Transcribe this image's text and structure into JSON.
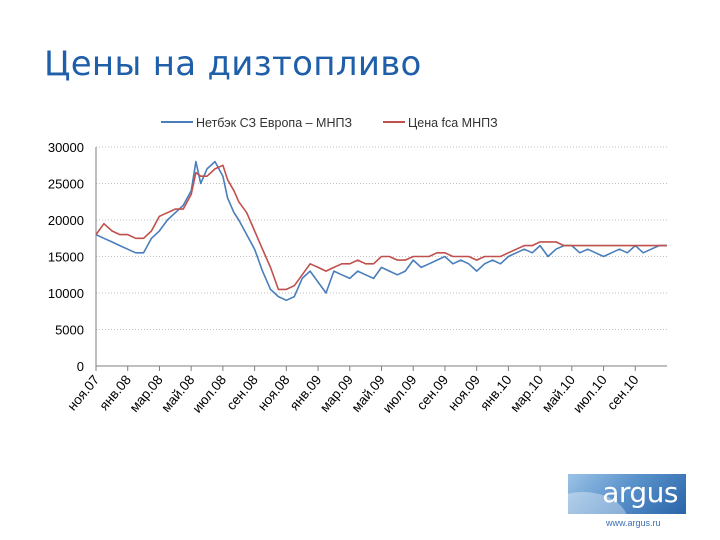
{
  "slide": {
    "title": "Цены на дизтопливо"
  },
  "logo": {
    "text": "argus",
    "url": "www.argus.ru"
  },
  "chart_data": {
    "type": "line",
    "title": "",
    "xlabel": "",
    "ylabel": "",
    "ylim": [
      0,
      30000
    ],
    "yticks": [
      0,
      5000,
      10000,
      15000,
      20000,
      25000,
      30000
    ],
    "ytick_labels": [
      "0",
      "5000",
      "10000",
      "15000",
      "20000",
      "25000",
      "30000"
    ],
    "xlim": [
      0,
      36
    ],
    "x_unit": "month index from ноя.07",
    "xticks": [
      0,
      2,
      4,
      6,
      8,
      10,
      12,
      14,
      16,
      18,
      20,
      22,
      24,
      26,
      28,
      30,
      32,
      34
    ],
    "xtick_labels": [
      "ноя.07",
      "янв.08",
      "мар.08",
      "май.08",
      "июл.08",
      "сен.08",
      "ноя.08",
      "янв.09",
      "мар.09",
      "май.09",
      "июл.09",
      "сен.09",
      "ноя.09",
      "янв.10",
      "мар.10",
      "май.10",
      "июл.10",
      "сен.10"
    ],
    "grid": "horizontal dotted",
    "legend_position": "top",
    "series": [
      {
        "name": "Нетбэк СЗ Европа – МНПЗ",
        "color": "#4A7EBB",
        "x": [
          0,
          0.5,
          1,
          1.5,
          2,
          2.5,
          3,
          3.5,
          4,
          4.5,
          5,
          5.5,
          6,
          6.3,
          6.6,
          7,
          7.5,
          8,
          8.3,
          8.7,
          9,
          9.5,
          10,
          10.5,
          11,
          11.5,
          12,
          12.5,
          13,
          13.5,
          14,
          14.5,
          15,
          15.5,
          16,
          16.5,
          17,
          17.5,
          18,
          18.5,
          19,
          19.5,
          20,
          20.5,
          21,
          21.5,
          22,
          22.5,
          23,
          23.5,
          24,
          24.5,
          25,
          25.5,
          26,
          26.5,
          27,
          27.5,
          28,
          28.5,
          29,
          29.5,
          30,
          30.5,
          31,
          31.5,
          32,
          32.5,
          33,
          33.5,
          34,
          34.5,
          35,
          35.5,
          36
        ],
        "values": [
          18000,
          17500,
          17000,
          16500,
          16000,
          15500,
          15500,
          17500,
          18500,
          20000,
          21000,
          22000,
          24000,
          28000,
          25000,
          27000,
          28000,
          26000,
          23000,
          21000,
          20000,
          18000,
          16000,
          13000,
          10500,
          9500,
          9000,
          9500,
          12000,
          13000,
          11500,
          10000,
          13000,
          12500,
          12000,
          13000,
          12500,
          12000,
          13500,
          13000,
          12500,
          13000,
          14500,
          13500,
          14000,
          14500,
          15000,
          14000,
          14500,
          14000,
          13000,
          14000,
          14500,
          14000,
          15000,
          15500,
          16000,
          15500,
          16500,
          15000,
          16000,
          16500,
          16500,
          15500,
          16000,
          15500,
          15000,
          15500,
          16000,
          15500,
          16500,
          15500,
          16000,
          16500,
          16500
        ]
      },
      {
        "name": "Цена fca МНПЗ",
        "color": "#C0504D",
        "x": [
          0,
          0.5,
          1,
          1.5,
          2,
          2.5,
          3,
          3.5,
          4,
          4.5,
          5,
          5.5,
          6,
          6.3,
          6.6,
          7,
          7.5,
          8,
          8.3,
          8.7,
          9,
          9.5,
          10,
          10.5,
          11,
          11.5,
          12,
          12.5,
          13,
          13.5,
          14,
          14.5,
          15,
          15.5,
          16,
          16.5,
          17,
          17.5,
          18,
          18.5,
          19,
          19.5,
          20,
          20.5,
          21,
          21.5,
          22,
          22.5,
          23,
          23.5,
          24,
          24.5,
          25,
          25.5,
          26,
          26.5,
          27,
          27.5,
          28,
          28.5,
          29,
          29.5,
          30,
          30.5,
          31,
          31.5,
          32,
          32.5,
          33,
          33.5,
          34,
          34.5,
          35,
          35.5,
          36
        ],
        "values": [
          18000,
          19500,
          18500,
          18000,
          18000,
          17500,
          17500,
          18500,
          20500,
          21000,
          21500,
          21500,
          23500,
          26500,
          26000,
          26000,
          27000,
          27500,
          25500,
          24000,
          22500,
          21000,
          18500,
          16000,
          13500,
          10500,
          10500,
          11000,
          12500,
          14000,
          13500,
          13000,
          13500,
          14000,
          14000,
          14500,
          14000,
          14000,
          15000,
          15000,
          14500,
          14500,
          15000,
          15000,
          15000,
          15500,
          15500,
          15000,
          15000,
          15000,
          14500,
          15000,
          15000,
          15000,
          15500,
          16000,
          16500,
          16500,
          17000,
          17000,
          17000,
          16500,
          16500,
          16500,
          16500,
          16500,
          16500,
          16500,
          16500,
          16500,
          16500,
          16500,
          16500,
          16500,
          16500
        ]
      }
    ]
  }
}
